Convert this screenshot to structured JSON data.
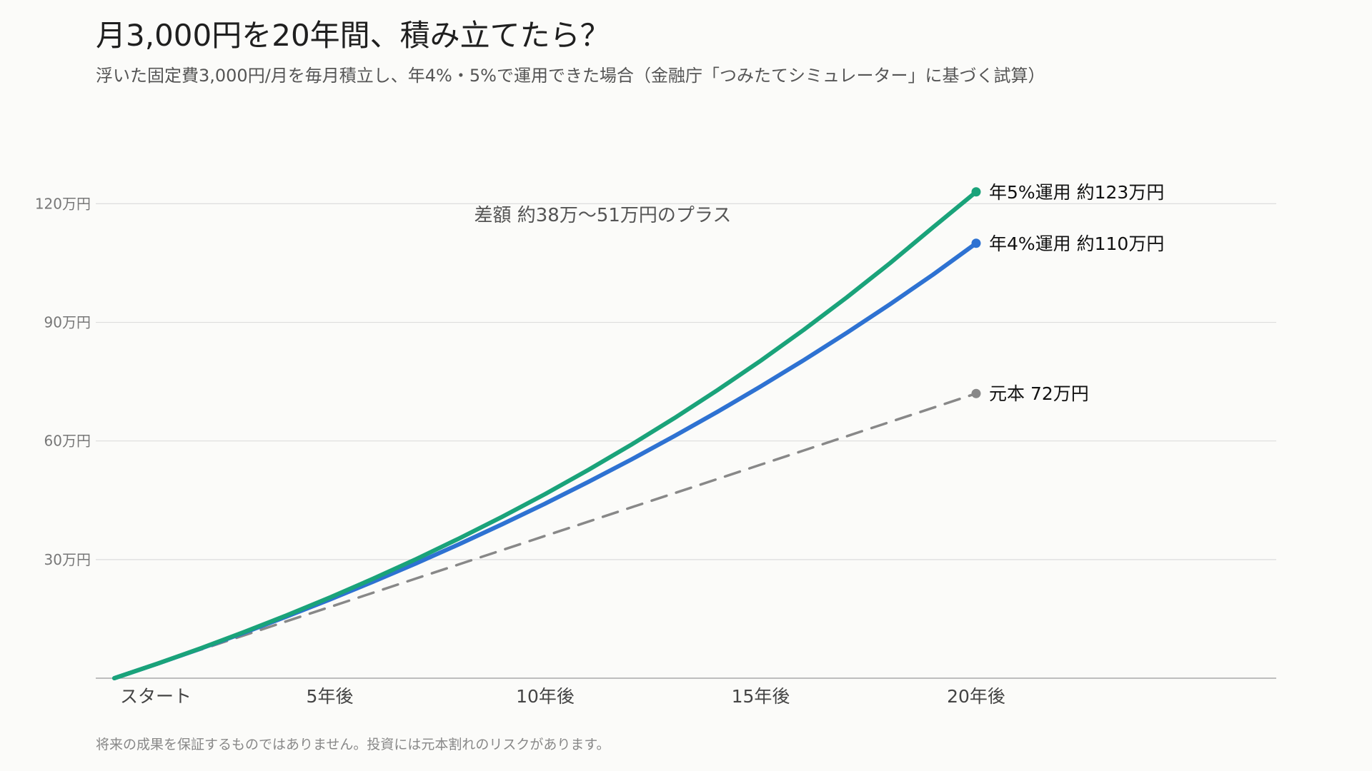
{
  "title": "月3,000円を20年間、積み立てたら？",
  "subtitle": "浮いた固定費3,000円/月を毎月積立し、年4%・5%で運用できた場合（金融庁「つみたてシミュレーター」に基づく試算）",
  "footnote": "将来の成果を保証するものではありません。投資には元本割れのリスクがあります。",
  "chart_data": {
    "type": "line",
    "title": "月3,000円を20年間、積み立てたら？",
    "subtitle": "浮いた固定費3,000円/月を毎月積立し、年4%・5%で運用できた場合（金融庁「つみたてシミュレーター」に基づく試算）",
    "xlabel": "",
    "ylabel": "",
    "x": [
      0,
      1,
      2,
      3,
      4,
      5,
      6,
      7,
      8,
      9,
      10,
      11,
      12,
      13,
      14,
      15,
      16,
      17,
      18,
      19,
      20
    ],
    "xlim": [
      0,
      20
    ],
    "x_ticks": [
      0,
      5,
      10,
      15,
      20
    ],
    "x_tick_labels": [
      "スタート",
      "5年後",
      "10年後",
      "15年後",
      "20年後"
    ],
    "ylim": [
      0,
      130
    ],
    "y_ticks": [
      30,
      60,
      90,
      120
    ],
    "y_tick_labels": [
      "30万円",
      "60万円",
      "90万円",
      "120万円"
    ],
    "grid": true,
    "legend": "none (labels at line ends)",
    "series": [
      {
        "name": "年5%運用",
        "color": "#1aa37a",
        "style": "solid",
        "values": [
          0,
          3.68,
          7.55,
          11.62,
          15.9,
          20.4,
          25.13,
          30.1,
          35.33,
          40.83,
          46.58,
          52.68,
          59.07,
          65.79,
          72.87,
          80.3,
          88.12,
          96.33,
          104.96,
          114.03,
          123
        ],
        "end_label": "年5%運用 約123万円"
      },
      {
        "name": "年4%運用",
        "color": "#2e72d2",
        "style": "solid",
        "values": [
          0,
          3.67,
          7.48,
          11.45,
          15.6,
          19.89,
          24.37,
          29.03,
          33.88,
          38.93,
          44.17,
          49.64,
          55.33,
          61.24,
          67.39,
          73.79,
          80.44,
          87.37,
          94.57,
          102.07,
          110
        ],
        "end_label": "年4%運用 約110万円"
      },
      {
        "name": "元本",
        "color": "#888888",
        "style": "dashed",
        "values": [
          0,
          3.6,
          7.2,
          10.8,
          14.4,
          18,
          21.6,
          25.2,
          28.8,
          32.4,
          36,
          39.6,
          43.2,
          46.8,
          50.4,
          54,
          57.6,
          61.2,
          64.8,
          68.4,
          72
        ],
        "end_label": "元本 72万円"
      }
    ],
    "annotations": [
      {
        "text": "差額 約38万〜51万円のプラス",
        "x": 11.5,
        "y": 117
      }
    ],
    "colors": {
      "grid": "#dddddd",
      "axis": "#aaaaaa",
      "background": "#fbfbf9"
    }
  }
}
